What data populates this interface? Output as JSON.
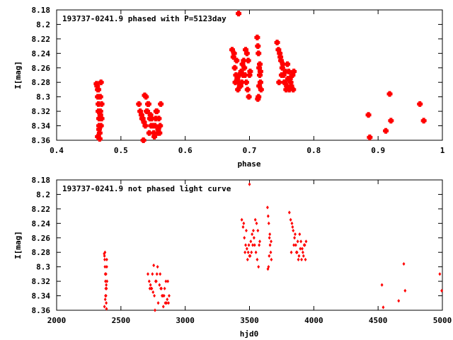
{
  "chart_data": [
    {
      "type": "scatter",
      "title": "193737-0241.9 phased with P=5123day",
      "xlabel": "phase",
      "ylabel": "I[mag]",
      "xlim": [
        0.4,
        1.0
      ],
      "ylim": [
        8.18,
        8.36
      ],
      "y_inverted": true,
      "grid": false,
      "xticks": [
        "0.4",
        "0.5",
        "0.6",
        "0.7",
        "0.8",
        "0.9",
        "1"
      ],
      "yticks": [
        "8.18",
        "8.2",
        "8.22",
        "8.24",
        "8.26",
        "8.28",
        "8.3",
        "8.32",
        "8.34",
        "8.36"
      ],
      "marker_color": "#ff0000",
      "marker": "cross",
      "series": [
        {
          "x": [
            0.462,
            0.463,
            0.464,
            0.464,
            0.465,
            0.465,
            0.466,
            0.466,
            0.467,
            0.467,
            0.468,
            0.468,
            0.469,
            0.469,
            0.47,
            0.47,
            0.464,
            0.466,
            0.468,
            0.465,
            0.528,
            0.53,
            0.532,
            0.534,
            0.536,
            0.538,
            0.54,
            0.542,
            0.544,
            0.546,
            0.548,
            0.55,
            0.552,
            0.554,
            0.556,
            0.558,
            0.56,
            0.562,
            0.535,
            0.539,
            0.543,
            0.547,
            0.551,
            0.555,
            0.559,
            0.537,
            0.541,
            0.545,
            0.553,
            0.557,
            0.561,
            0.533,
            0.673,
            0.675,
            0.677,
            0.679,
            0.681,
            0.683,
            0.685,
            0.687,
            0.689,
            0.691,
            0.693,
            0.695,
            0.697,
            0.699,
            0.701,
            0.676,
            0.68,
            0.684,
            0.688,
            0.692,
            0.696,
            0.7,
            0.678,
            0.682,
            0.686,
            0.69,
            0.694,
            0.698,
            0.712,
            0.713,
            0.714,
            0.715,
            0.716,
            0.717,
            0.718,
            0.714,
            0.716,
            0.713,
            0.717,
            0.715,
            0.743,
            0.745,
            0.747,
            0.749,
            0.751,
            0.753,
            0.755,
            0.757,
            0.759,
            0.761,
            0.763,
            0.765,
            0.767,
            0.769,
            0.748,
            0.752,
            0.756,
            0.76,
            0.764,
            0.768,
            0.746,
            0.75,
            0.754,
            0.758,
            0.762,
            0.766,
            0.885,
            0.887,
            0.912,
            0.918,
            0.92,
            0.965,
            0.971
          ],
          "y": [
            8.282,
            8.285,
            8.29,
            8.3,
            8.31,
            8.32,
            8.33,
            8.34,
            8.35,
            8.358,
            8.3,
            8.32,
            8.28,
            8.34,
            8.31,
            8.33,
            8.355,
            8.345,
            8.325,
            8.29,
            8.31,
            8.32,
            8.325,
            8.33,
            8.335,
            8.34,
            8.32,
            8.31,
            8.35,
            8.325,
            8.33,
            8.34,
            8.355,
            8.33,
            8.32,
            8.345,
            8.35,
            8.31,
            8.36,
            8.3,
            8.31,
            8.34,
            8.35,
            8.32,
            8.33,
            8.298,
            8.32,
            8.33,
            8.34,
            8.35,
            8.34,
            8.33,
            8.235,
            8.245,
            8.26,
            8.27,
            8.275,
            8.28,
            8.285,
            8.265,
            8.255,
            8.25,
            8.27,
            8.28,
            8.29,
            8.3,
            8.265,
            8.24,
            8.25,
            8.27,
            8.28,
            8.26,
            8.24,
            8.27,
            8.28,
            8.29,
            8.285,
            8.27,
            8.235,
            8.25,
            8.218,
            8.23,
            8.24,
            8.26,
            8.27,
            8.28,
            8.29,
            8.3,
            8.255,
            8.303,
            8.265,
            8.285,
            8.225,
            8.235,
            8.24,
            8.25,
            8.26,
            8.27,
            8.28,
            8.29,
            8.255,
            8.265,
            8.275,
            8.285,
            8.27,
            8.265,
            8.245,
            8.255,
            8.265,
            8.275,
            8.28,
            8.29,
            8.28,
            8.27,
            8.28,
            8.285,
            8.29,
            8.27,
            8.325,
            8.356,
            8.347,
            8.296,
            8.333,
            8.31,
            8.333
          ],
          "extra": [
            {
              "x": 0.683,
              "y": 8.185
            }
          ]
        }
      ]
    },
    {
      "type": "scatter",
      "title": "193737-0241.9 not phased light curve",
      "xlabel": "hjd0",
      "ylabel": "I[mag]",
      "xlim": [
        2000,
        5000
      ],
      "ylim": [
        8.18,
        8.36
      ],
      "y_inverted": true,
      "grid": false,
      "xticks": [
        "2000",
        "2500",
        "3000",
        "3500",
        "4000",
        "4500",
        "5000"
      ],
      "yticks": [
        "8.18",
        "8.2",
        "8.22",
        "8.24",
        "8.26",
        "8.28",
        "8.3",
        "8.32",
        "8.34",
        "8.36"
      ],
      "marker_color": "#ff0000",
      "marker": "diamond",
      "series": [
        {
          "x": [
            2370,
            2372,
            2374,
            2376,
            2378,
            2380,
            2382,
            2384,
            2386,
            2388,
            2390,
            2392,
            2376,
            2380,
            2384,
            2388,
            2372,
            2378,
            2386,
            2390,
            2710,
            2720,
            2730,
            2740,
            2750,
            2760,
            2770,
            2780,
            2790,
            2800,
            2810,
            2820,
            2830,
            2840,
            2850,
            2860,
            2870,
            2745,
            2765,
            2785,
            2805,
            2825,
            2845,
            2865,
            2735,
            2755,
            2775,
            2815,
            2835,
            2855,
            2875,
            2725,
            3440,
            3450,
            3460,
            3470,
            3480,
            3490,
            3500,
            3510,
            3520,
            3530,
            3540,
            3550,
            3560,
            3570,
            3580,
            3455,
            3475,
            3495,
            3515,
            3535,
            3555,
            3575,
            3465,
            3485,
            3505,
            3525,
            3545,
            3565,
            3640,
            3645,
            3650,
            3655,
            3660,
            3665,
            3670,
            3648,
            3658,
            3643,
            3668,
            3653,
            3810,
            3820,
            3830,
            3840,
            3850,
            3860,
            3870,
            3880,
            3890,
            3900,
            3910,
            3920,
            3930,
            3940,
            3835,
            3855,
            3875,
            3895,
            3915,
            3935,
            3825,
            3845,
            3865,
            3885,
            3905,
            3925,
            4530,
            4540,
            4660,
            4700,
            4710,
            4980,
            4995
          ],
          "y": [
            8.282,
            8.285,
            8.29,
            8.3,
            8.31,
            8.32,
            8.33,
            8.34,
            8.35,
            8.358,
            8.3,
            8.32,
            8.28,
            8.34,
            8.31,
            8.33,
            8.355,
            8.345,
            8.325,
            8.29,
            8.31,
            8.32,
            8.325,
            8.33,
            8.335,
            8.34,
            8.32,
            8.31,
            8.35,
            8.325,
            8.33,
            8.34,
            8.355,
            8.33,
            8.32,
            8.345,
            8.35,
            8.31,
            8.36,
            8.3,
            8.31,
            8.34,
            8.35,
            8.32,
            8.33,
            8.298,
            8.32,
            8.33,
            8.34,
            8.35,
            8.34,
            8.33,
            8.235,
            8.245,
            8.26,
            8.27,
            8.275,
            8.28,
            8.285,
            8.265,
            8.255,
            8.25,
            8.27,
            8.28,
            8.29,
            8.3,
            8.265,
            8.24,
            8.25,
            8.27,
            8.28,
            8.26,
            8.24,
            8.27,
            8.28,
            8.29,
            8.285,
            8.27,
            8.235,
            8.25,
            8.218,
            8.23,
            8.24,
            8.26,
            8.27,
            8.28,
            8.29,
            8.3,
            8.255,
            8.303,
            8.265,
            8.285,
            8.225,
            8.235,
            8.24,
            8.25,
            8.26,
            8.27,
            8.28,
            8.29,
            8.255,
            8.265,
            8.275,
            8.285,
            8.27,
            8.265,
            8.245,
            8.255,
            8.265,
            8.275,
            8.28,
            8.29,
            8.28,
            8.27,
            8.28,
            8.285,
            8.29,
            8.27,
            8.325,
            8.356,
            8.347,
            8.296,
            8.333,
            8.31,
            8.333
          ],
          "extra": [
            {
              "x": 3500,
              "y": 8.186
            }
          ]
        }
      ]
    }
  ]
}
